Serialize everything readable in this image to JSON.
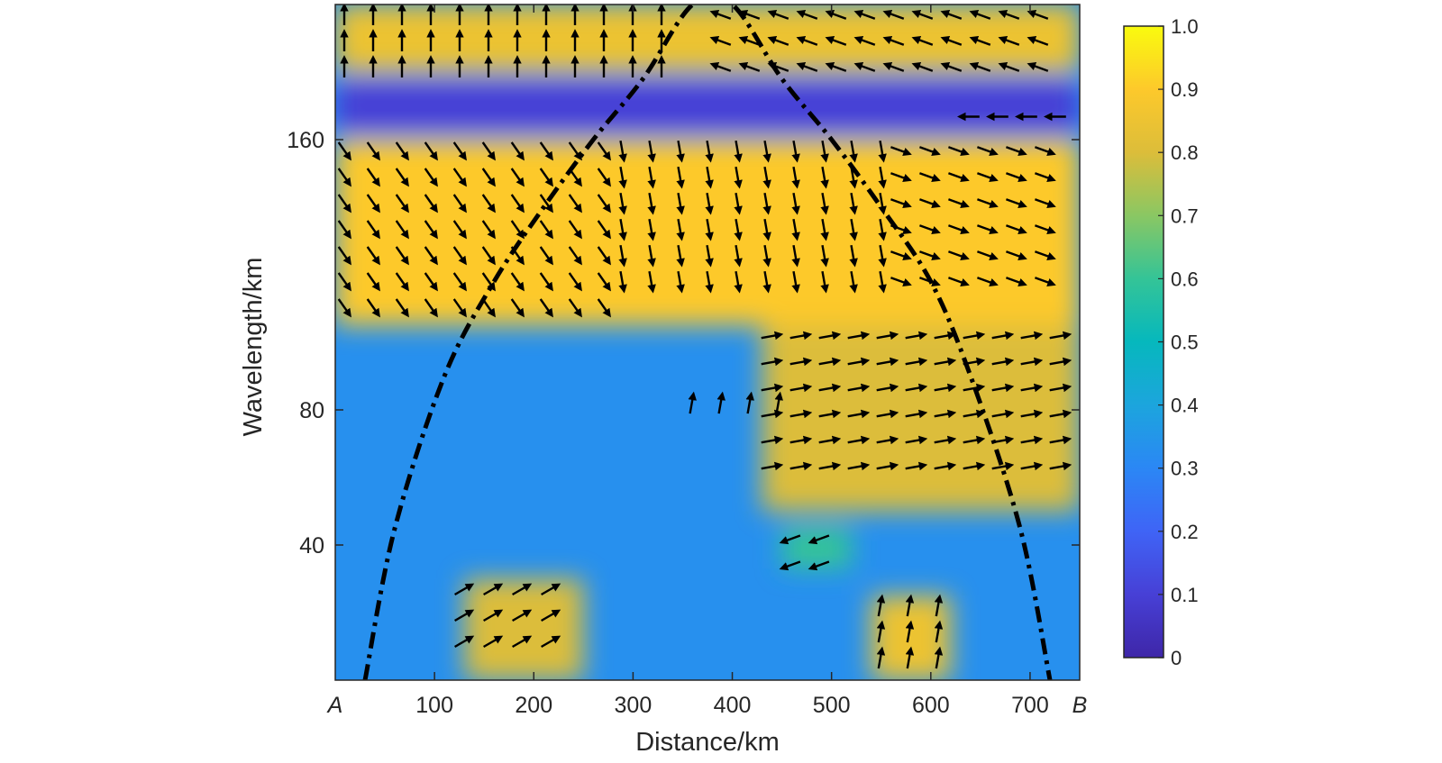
{
  "chart_data": {
    "type": "heatmap",
    "title": "",
    "xlabel": "Distance/km",
    "ylabel": "Wavelength/km",
    "xlim": [
      0,
      750
    ],
    "ylim": [
      0,
      200
    ],
    "x_ticks": [
      100,
      200,
      300,
      400,
      500,
      600,
      700
    ],
    "y_ticks": [
      40,
      80,
      160
    ],
    "x_end_labels": [
      "A",
      "B"
    ],
    "colorbar": {
      "min": 0,
      "max": 1,
      "ticks": [
        "0",
        "0.1",
        "0.2",
        "0.3",
        "0.4",
        "0.5",
        "0.6",
        "0.7",
        "0.8",
        "0.9",
        "1.0"
      ],
      "colormap": "parula"
    },
    "cone_of_influence": {
      "style": "dash-dot",
      "color": "#000000",
      "points": [
        [
          30,
          0
        ],
        [
          60,
          45
        ],
        [
          110,
          90
        ],
        [
          160,
          118
        ],
        [
          210,
          140
        ],
        [
          260,
          160
        ],
        [
          310,
          178
        ],
        [
          360,
          200
        ],
        [
          400,
          200
        ],
        [
          450,
          178
        ],
        [
          500,
          160
        ],
        [
          550,
          140
        ],
        [
          600,
          118
        ],
        [
          640,
          90
        ],
        [
          690,
          45
        ],
        [
          720,
          0
        ]
      ]
    },
    "bands": [
      {
        "wavelength_range": [
          180,
          200
        ],
        "x_range": [
          0,
          750
        ],
        "coherence": 0.85
      },
      {
        "wavelength_range": [
          162,
          178
        ],
        "x_range": [
          0,
          750
        ],
        "coherence": 0.1
      },
      {
        "wavelength_range": [
          105,
          160
        ],
        "x_range": [
          0,
          750
        ],
        "coherence": 0.9
      },
      {
        "wavelength_range": [
          50,
          105
        ],
        "x_range": [
          430,
          750
        ],
        "coherence": 0.8
      },
      {
        "wavelength_range": [
          0,
          30
        ],
        "x_range": [
          130,
          250
        ],
        "coherence": 0.8
      },
      {
        "wavelength_range": [
          0,
          25
        ],
        "x_range": [
          540,
          620
        ],
        "coherence": 0.85
      },
      {
        "wavelength_range": [
          33,
          45
        ],
        "x_range": [
          450,
          520
        ],
        "coherence": 0.6
      }
    ],
    "phase_arrows": [
      {
        "region": [
          0,
          360,
          180,
          200
        ],
        "angle_deg": 90
      },
      {
        "region": [
          380,
          740,
          180,
          200
        ],
        "angle_deg": 160
      },
      {
        "region": [
          630,
          740,
          165,
          170
        ],
        "angle_deg": 180
      },
      {
        "region": [
          0,
          280,
          105,
          160
        ],
        "angle_deg": -55
      },
      {
        "region": [
          280,
          560,
          110,
          160
        ],
        "angle_deg": -80
      },
      {
        "region": [
          560,
          740,
          110,
          160
        ],
        "angle_deg": -20
      },
      {
        "region": [
          430,
          740,
          60,
          105
        ],
        "angle_deg": 10
      },
      {
        "region": [
          350,
          450,
          75,
          85
        ],
        "angle_deg": 80
      },
      {
        "region": [
          120,
          240,
          5,
          30
        ],
        "angle_deg": 30
      },
      {
        "region": [
          540,
          620,
          5,
          25
        ],
        "angle_deg": 80
      },
      {
        "region": [
          450,
          520,
          33,
          45
        ],
        "angle_deg": 200
      }
    ]
  }
}
